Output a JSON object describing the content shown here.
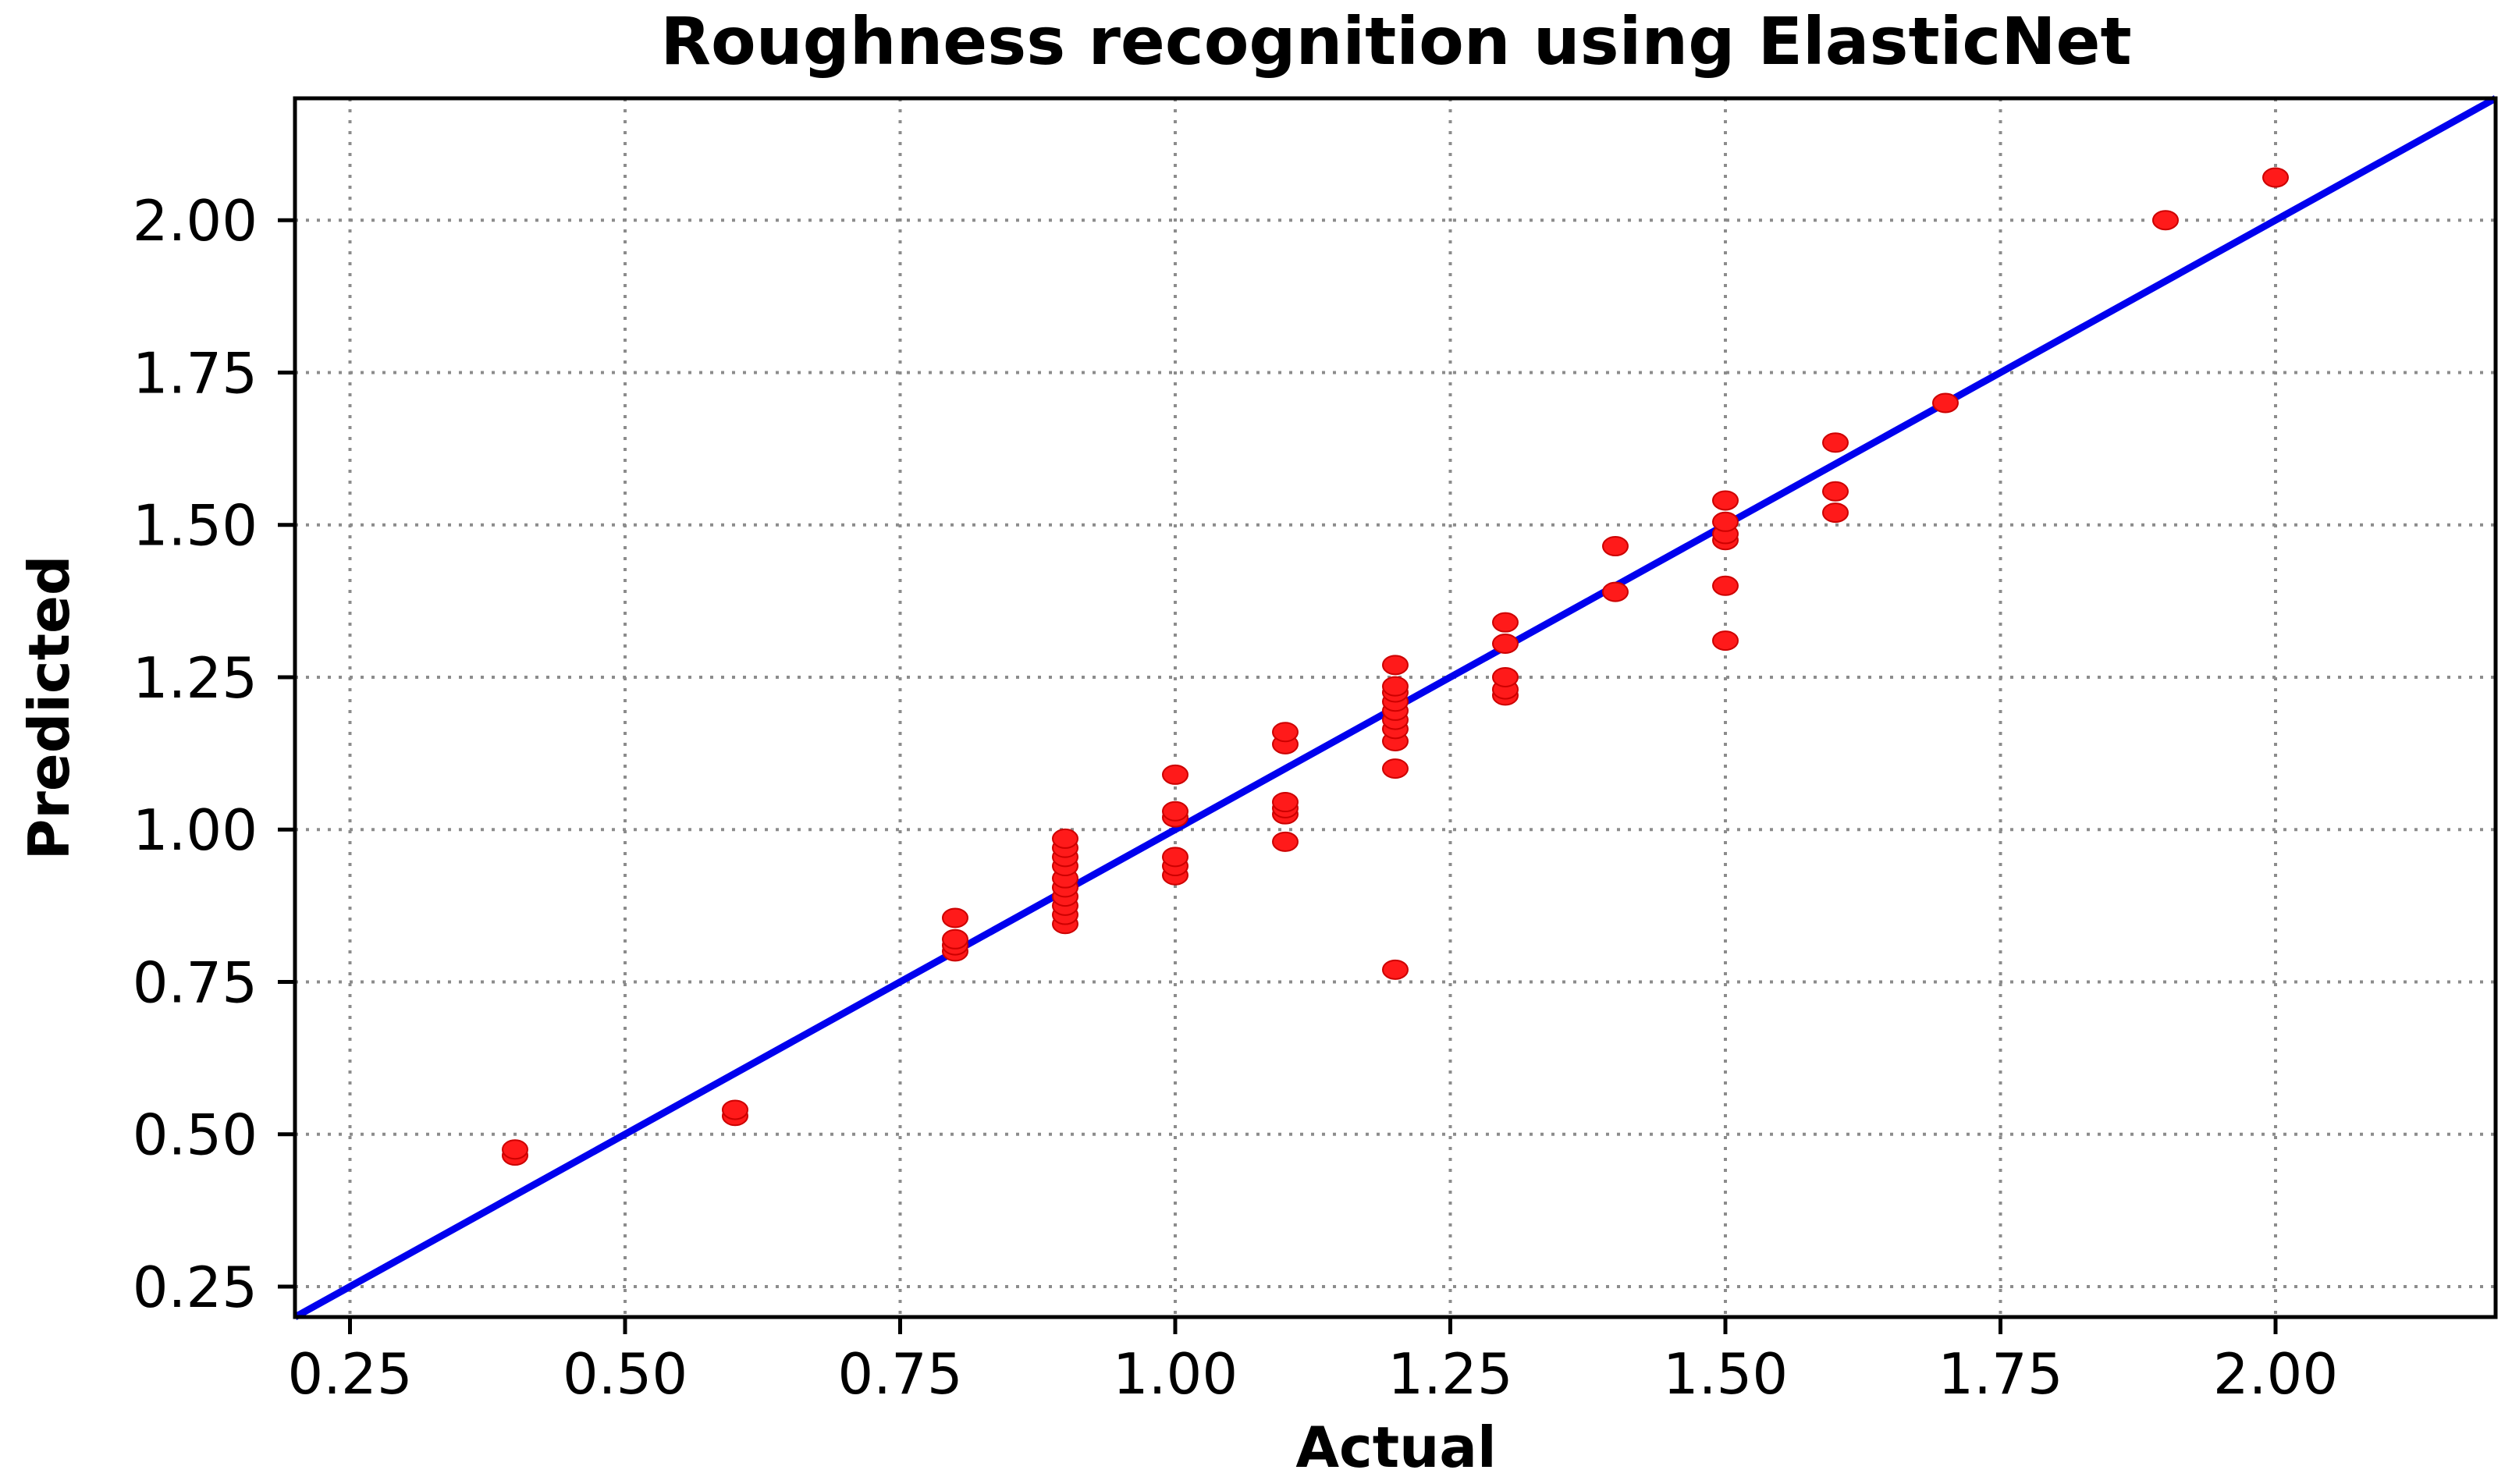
{
  "chart_data": {
    "type": "scatter",
    "title": "Roughness recognition using ElasticNet",
    "xlabel": "Actual",
    "ylabel": "Predicted",
    "xlim": [
      0.2,
      2.2
    ],
    "ylim": [
      0.2,
      2.2
    ],
    "xticks": [
      0.25,
      0.5,
      0.75,
      1.0,
      1.25,
      1.5,
      1.75,
      2.0
    ],
    "yticks": [
      0.25,
      0.5,
      0.75,
      1.0,
      1.25,
      1.5,
      1.75,
      2.0
    ],
    "xtick_labels": [
      "0.25",
      "0.50",
      "0.75",
      "1.00",
      "1.25",
      "1.50",
      "1.75",
      "2.00"
    ],
    "ytick_labels": [
      "0.25",
      "0.50",
      "0.75",
      "1.00",
      "1.25",
      "1.50",
      "1.75",
      "2.00"
    ],
    "grid": true,
    "marker_color": "#ff1a1a",
    "line_color": "#0000ee",
    "reference_line": {
      "type": "identity",
      "from": [
        0.2,
        0.2
      ],
      "to": [
        2.2,
        2.2
      ]
    },
    "series": [
      {
        "points": [
          [
            0.4,
            0.465
          ],
          [
            0.4,
            0.475
          ],
          [
            0.6,
            0.53
          ],
          [
            0.6,
            0.54
          ],
          [
            0.8,
            0.8
          ],
          [
            0.8,
            0.81
          ],
          [
            0.8,
            0.82
          ],
          [
            0.8,
            0.855
          ],
          [
            0.9,
            0.845
          ],
          [
            0.9,
            0.86
          ],
          [
            0.9,
            0.875
          ],
          [
            0.9,
            0.89
          ],
          [
            0.9,
            0.905
          ],
          [
            0.9,
            0.92
          ],
          [
            0.9,
            0.94
          ],
          [
            0.9,
            0.955
          ],
          [
            0.9,
            0.97
          ],
          [
            0.9,
            0.985
          ],
          [
            1.0,
            0.925
          ],
          [
            1.0,
            0.94
          ],
          [
            1.0,
            0.955
          ],
          [
            1.0,
            1.02
          ],
          [
            1.0,
            1.03
          ],
          [
            1.0,
            1.09
          ],
          [
            1.1,
            0.98
          ],
          [
            1.1,
            1.025
          ],
          [
            1.1,
            1.035
          ],
          [
            1.1,
            1.045
          ],
          [
            1.1,
            1.14
          ],
          [
            1.1,
            1.16
          ],
          [
            1.2,
            0.77
          ],
          [
            1.2,
            1.1
          ],
          [
            1.2,
            1.145
          ],
          [
            1.2,
            1.165
          ],
          [
            1.2,
            1.18
          ],
          [
            1.2,
            1.195
          ],
          [
            1.2,
            1.21
          ],
          [
            1.2,
            1.225
          ],
          [
            1.2,
            1.235
          ],
          [
            1.2,
            1.27
          ],
          [
            1.3,
            1.22
          ],
          [
            1.3,
            1.23
          ],
          [
            1.3,
            1.25
          ],
          [
            1.3,
            1.305
          ],
          [
            1.3,
            1.34
          ],
          [
            1.4,
            1.39
          ],
          [
            1.4,
            1.465
          ],
          [
            1.5,
            1.31
          ],
          [
            1.5,
            1.4
          ],
          [
            1.5,
            1.475
          ],
          [
            1.5,
            1.485
          ],
          [
            1.5,
            1.505
          ],
          [
            1.5,
            1.54
          ],
          [
            1.6,
            1.52
          ],
          [
            1.6,
            1.555
          ],
          [
            1.6,
            1.635
          ],
          [
            1.7,
            1.7
          ],
          [
            1.9,
            2.0
          ],
          [
            2.0,
            2.07
          ]
        ]
      }
    ]
  }
}
